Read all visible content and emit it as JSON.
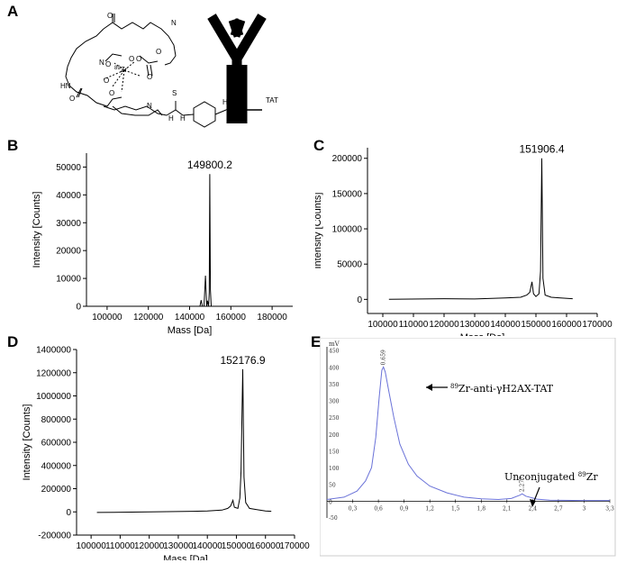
{
  "panels": {
    "A": "A",
    "B": "B",
    "C": "C",
    "D": "D",
    "E": "E"
  },
  "structure": {
    "atoms": {
      "zr": "89Zr",
      "tat": "TAT"
    }
  },
  "chart_data": [
    {
      "id": "B",
      "type": "line",
      "xlabel": "Mass [Da]",
      "ylabel": "Intensity [Counts]",
      "xlim": [
        90000,
        190000
      ],
      "ylim": [
        0,
        55000
      ],
      "xticks": [
        100000,
        120000,
        140000,
        160000,
        180000
      ],
      "yticks": [
        0,
        10000,
        20000,
        30000,
        40000,
        50000
      ],
      "annotation": {
        "text": "149800.2",
        "x": 149800.2
      },
      "points": [
        [
          100000,
          0
        ],
        [
          145000,
          0
        ],
        [
          145600,
          2200
        ],
        [
          146200,
          0
        ],
        [
          147000,
          0
        ],
        [
          147700,
          11000
        ],
        [
          148300,
          0
        ],
        [
          148700,
          2000
        ],
        [
          149200,
          0
        ],
        [
          149500,
          5000
        ],
        [
          149800,
          47500
        ],
        [
          150100,
          6000
        ],
        [
          150500,
          0
        ],
        [
          180000,
          0
        ]
      ]
    },
    {
      "id": "C",
      "type": "line",
      "xlabel": "Mass [Da]",
      "ylabel": "Intensity [Counts]",
      "xlim": [
        95000,
        170000
      ],
      "ylim": [
        -20000,
        215000
      ],
      "xticks": [
        100000,
        110000,
        120000,
        130000,
        140000,
        150000,
        160000,
        170000
      ],
      "yticks": [
        0,
        50000,
        100000,
        150000,
        200000
      ],
      "annotation": {
        "text": "151906.4",
        "x": 151906.4
      },
      "points": [
        [
          102000,
          0
        ],
        [
          120000,
          1000
        ],
        [
          130000,
          500
        ],
        [
          140000,
          2000
        ],
        [
          145000,
          3000
        ],
        [
          147000,
          6000
        ],
        [
          148000,
          10000
        ],
        [
          148700,
          25000
        ],
        [
          149200,
          8000
        ],
        [
          150000,
          4000
        ],
        [
          151000,
          8000
        ],
        [
          151500,
          40000
        ],
        [
          151906,
          200000
        ],
        [
          152300,
          30000
        ],
        [
          153000,
          6000
        ],
        [
          155000,
          3000
        ],
        [
          158000,
          2000
        ],
        [
          162000,
          1000
        ]
      ]
    },
    {
      "id": "D",
      "type": "line",
      "xlabel": "Mass [Da]",
      "ylabel": "Intensity [Counts]",
      "xlim": [
        95000,
        170000
      ],
      "ylim": [
        -200000,
        1400000
      ],
      "xticks": [
        100000,
        110000,
        120000,
        130000,
        140000,
        150000,
        160000,
        170000
      ],
      "yticks": [
        -200000,
        0,
        200000,
        400000,
        600000,
        800000,
        1000000,
        1200000,
        1400000
      ],
      "annotation": {
        "text": "152176.9",
        "x": 152176.9
      },
      "points": [
        [
          102000,
          -5000
        ],
        [
          120000,
          0
        ],
        [
          135000,
          5000
        ],
        [
          140000,
          8000
        ],
        [
          145000,
          15000
        ],
        [
          147000,
          30000
        ],
        [
          148000,
          50000
        ],
        [
          148800,
          100000
        ],
        [
          149300,
          40000
        ],
        [
          150500,
          30000
        ],
        [
          151200,
          120000
        ],
        [
          151600,
          350000
        ],
        [
          152177,
          1230000
        ],
        [
          152600,
          300000
        ],
        [
          153200,
          80000
        ],
        [
          154500,
          30000
        ],
        [
          157000,
          20000
        ],
        [
          160000,
          8000
        ],
        [
          162000,
          5000
        ]
      ]
    },
    {
      "id": "E",
      "type": "line",
      "unit": "mV",
      "xlim": [
        0,
        3.3
      ],
      "ylim": [
        -50,
        460
      ],
      "xticks": [
        "0,3",
        "0,6",
        "0,9",
        "1,2",
        "1,5",
        "1,8",
        "2,1",
        "2,4",
        "2,7",
        "3",
        "3,3"
      ],
      "yticks": [
        0,
        50,
        100,
        150,
        200,
        250,
        300,
        350,
        400,
        450
      ],
      "y_minus_label": "-50",
      "peaks": [
        {
          "label": "0.659",
          "x": 0.659,
          "y": 400
        },
        {
          "label": "2.277",
          "x": 2.277,
          "y": 22
        }
      ],
      "annotations": {
        "main_pre": "89",
        "main_post": "Zr-anti-γH2AX-TAT",
        "un_pre": "Unconjugated ",
        "un_sup": "89",
        "un_post": "Zr"
      },
      "points": [
        [
          0,
          5
        ],
        [
          0.2,
          12
        ],
        [
          0.35,
          30
        ],
        [
          0.45,
          60
        ],
        [
          0.52,
          100
        ],
        [
          0.57,
          190
        ],
        [
          0.61,
          310
        ],
        [
          0.64,
          390
        ],
        [
          0.659,
          400
        ],
        [
          0.68,
          385
        ],
        [
          0.72,
          330
        ],
        [
          0.78,
          250
        ],
        [
          0.85,
          170
        ],
        [
          0.95,
          110
        ],
        [
          1.05,
          75
        ],
        [
          1.2,
          45
        ],
        [
          1.4,
          25
        ],
        [
          1.6,
          12
        ],
        [
          1.8,
          7
        ],
        [
          2.0,
          5
        ],
        [
          2.15,
          8
        ],
        [
          2.25,
          18
        ],
        [
          2.277,
          22
        ],
        [
          2.32,
          15
        ],
        [
          2.45,
          6
        ],
        [
          2.6,
          3
        ],
        [
          3.0,
          2
        ],
        [
          3.3,
          2
        ]
      ]
    }
  ]
}
